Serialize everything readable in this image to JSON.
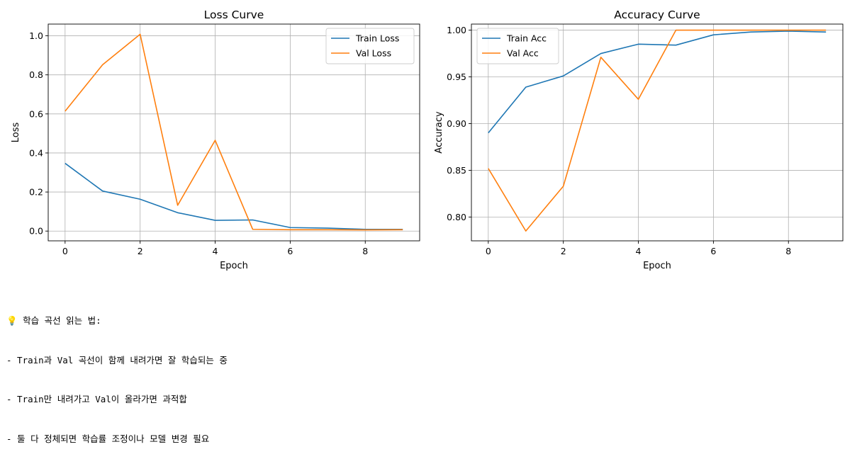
{
  "chart_data": [
    {
      "type": "line",
      "title": "Loss Curve",
      "xlabel": "Epoch",
      "ylabel": "Loss",
      "x": [
        0,
        1,
        2,
        3,
        4,
        5,
        6,
        7,
        8,
        9
      ],
      "xlim": [
        -0.45,
        9.45
      ],
      "ylim": [
        -0.05,
        1.06
      ],
      "xticks": [
        0,
        2,
        4,
        6,
        8
      ],
      "yticks": [
        0.0,
        0.2,
        0.4,
        0.6,
        0.8,
        1.0
      ],
      "ytick_format": 1,
      "grid": true,
      "legend": "top-right",
      "series": [
        {
          "name": "Train Loss",
          "color": "#1f77b4",
          "values": [
            0.347,
            0.205,
            0.163,
            0.094,
            0.055,
            0.057,
            0.018,
            0.015,
            0.009,
            0.009
          ]
        },
        {
          "name": "Val Loss",
          "color": "#ff7f0e",
          "values": [
            0.614,
            0.852,
            1.008,
            0.132,
            0.465,
            0.009,
            0.007,
            0.007,
            0.006,
            0.007
          ]
        }
      ]
    },
    {
      "type": "line",
      "title": "Accuracy Curve",
      "xlabel": "Epoch",
      "ylabel": "Accuracy",
      "x": [
        0,
        1,
        2,
        3,
        4,
        5,
        6,
        7,
        8,
        9
      ],
      "xlim": [
        -0.45,
        9.45
      ],
      "ylim": [
        0.7745,
        1.0065
      ],
      "xticks": [
        0,
        2,
        4,
        6,
        8
      ],
      "yticks": [
        0.8,
        0.85,
        0.9,
        0.95,
        1.0
      ],
      "ytick_format": 2,
      "grid": true,
      "legend": "top-left",
      "series": [
        {
          "name": "Train Acc",
          "color": "#1f77b4",
          "values": [
            0.89,
            0.939,
            0.951,
            0.975,
            0.985,
            0.984,
            0.995,
            0.998,
            0.999,
            0.998
          ]
        },
        {
          "name": "Val Acc",
          "color": "#ff7f0e",
          "values": [
            0.852,
            0.785,
            0.833,
            0.971,
            0.926,
            1.0,
            1.0,
            1.0,
            1.0,
            1.0
          ]
        }
      ]
    }
  ],
  "notes": {
    "line1": "💡 학습 곡선 읽는 법:",
    "line2": "- Train과 Val 곡선이 함께 내려가면 잘 학습되는 중",
    "line3": "- Train만 내려가고 Val이 올라가면 과적합",
    "line4": "- 둘 다 정체되면 학습률 조정이나 모델 변경 필요"
  }
}
